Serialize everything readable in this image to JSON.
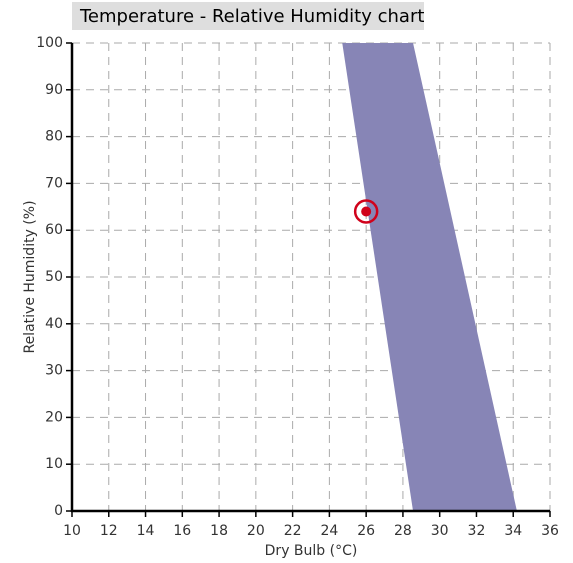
{
  "chart_data": {
    "type": "comfort-zone",
    "title": "Temperature - Relative Humidity chart",
    "x_label": "Dry Bulb (°C)",
    "y_label": "Relative Humidity (%)",
    "xlim": [
      10,
      36
    ],
    "xticks": [
      10,
      12,
      14,
      16,
      18,
      20,
      22,
      24,
      26,
      28,
      30,
      32,
      34,
      36
    ],
    "ylim": [
      0,
      100
    ],
    "yticks": [
      0,
      10,
      20,
      30,
      40,
      50,
      60,
      70,
      80,
      90,
      100
    ],
    "grid": true,
    "region": {
      "color": "#8785b6",
      "x": [
        24.7,
        28.55,
        29.4,
        34.2,
        28.55
      ],
      "y": [
        100,
        100,
        85,
        0,
        0
      ]
    },
    "point": {
      "x": 26,
      "y": 64,
      "color": "#d0021b"
    }
  }
}
